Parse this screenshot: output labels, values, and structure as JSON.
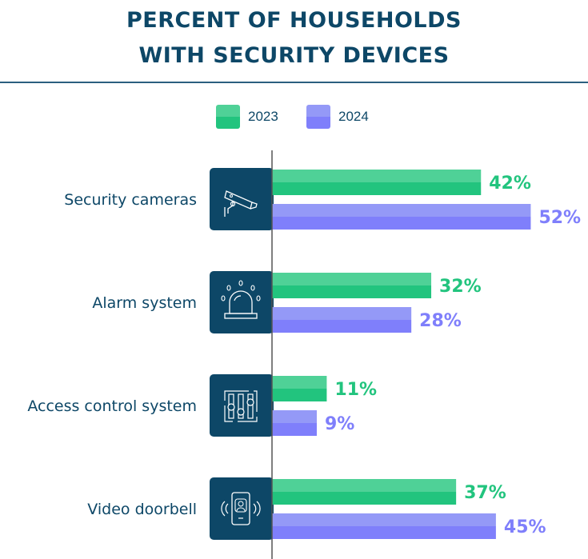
{
  "chart_data": {
    "type": "bar",
    "orientation": "horizontal",
    "title": "PERCENT OF HOUSEHOLDS WITH SECURITY DEVICES",
    "title_lines": [
      "PERCENT OF HOUSEHOLDS",
      "WITH SECURITY DEVICES"
    ],
    "xlabel": "",
    "ylabel": "",
    "categories": [
      "Security cameras",
      "Alarm system",
      "Access control system",
      "Video doorbell"
    ],
    "category_icons": [
      "security-camera-icon",
      "alarm-siren-icon",
      "access-control-sliders-icon",
      "video-doorbell-phone-icon"
    ],
    "series": [
      {
        "name": "2023",
        "values": [
          42,
          32,
          11,
          37
        ],
        "labels": [
          "42%",
          "32%",
          "11%",
          "37%"
        ],
        "color": "#22c47e",
        "color_light": "#4fd197",
        "label_color": "#22c47e"
      },
      {
        "name": "2024",
        "values": [
          52,
          28,
          9,
          45
        ],
        "labels": [
          "52%",
          "28%",
          "9%",
          "45%"
        ],
        "color": "#7f7ffb",
        "color_light": "#9499f7",
        "label_color": "#7f7ffb"
      }
    ],
    "xlim": [
      0,
      62
    ],
    "grid": false,
    "legend": "top-center",
    "unit": "%"
  },
  "colors": {
    "title": "#0d4767",
    "icon_tile": "#0d4767",
    "axis": "#555555"
  }
}
